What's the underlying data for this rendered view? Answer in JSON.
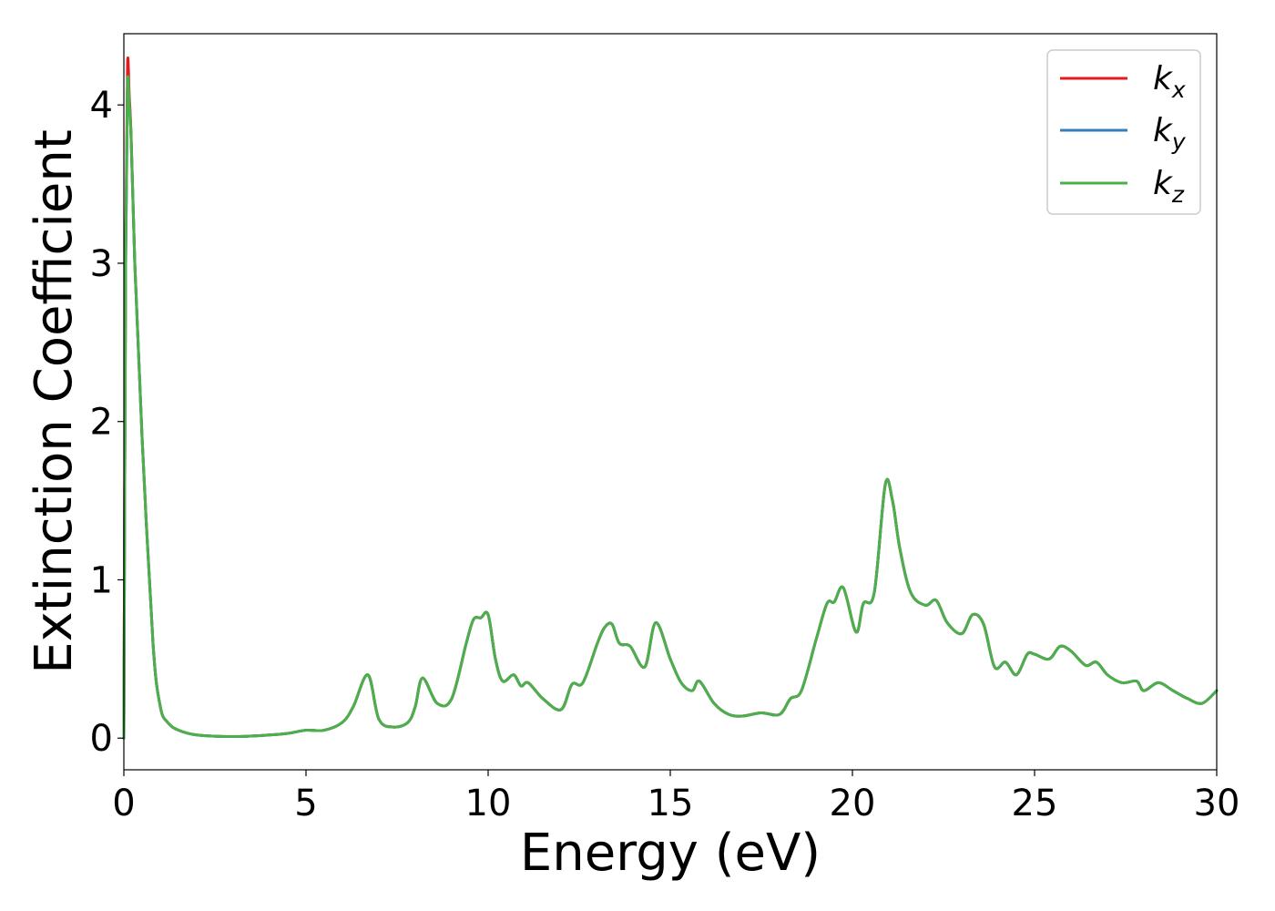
{
  "chart_data": {
    "type": "line",
    "title": "",
    "xlabel": "Energy (eV)",
    "ylabel": "Extinction Coefficient",
    "xlim": [
      0,
      30
    ],
    "ylim": [
      -0.2,
      4.45
    ],
    "xticks": [
      0,
      5,
      10,
      15,
      20,
      25,
      30
    ],
    "xtick_labels": [
      "0",
      "5",
      "10",
      "15",
      "20",
      "25",
      "30"
    ],
    "yticks": [
      0,
      1,
      2,
      3,
      4
    ],
    "ytick_labels": [
      "0",
      "1",
      "2",
      "3",
      "4"
    ],
    "grid": false,
    "legend_position": "top-right",
    "series": [
      {
        "name": "k",
        "subscript": "x",
        "color": "#e41a1c",
        "x": [
          0,
          0.05,
          0.1,
          0.15,
          0.2,
          0.3,
          0.5,
          0.8,
          1.0,
          1.2,
          1.5,
          2,
          3,
          4,
          4.5,
          5,
          5.5,
          6,
          6.3,
          6.7,
          7.0,
          7.4,
          7.8,
          8.0,
          8.2,
          8.6,
          9.0,
          9.4,
          9.6,
          9.8,
          10.0,
          10.2,
          10.4,
          10.7,
          10.9,
          11.1,
          11.5,
          12.0,
          12.3,
          12.6,
          13.0,
          13.2,
          13.4,
          13.6,
          13.9,
          14.3,
          14.6,
          15.0,
          15.3,
          15.6,
          15.8,
          16.2,
          16.6,
          17.0,
          17.5,
          18.0,
          18.3,
          18.6,
          19.0,
          19.3,
          19.5,
          19.75,
          20.1,
          20.3,
          20.6,
          20.9,
          21.1,
          21.3,
          21.6,
          22.0,
          22.3,
          22.6,
          23.0,
          23.3,
          23.6,
          23.9,
          24.2,
          24.5,
          24.8,
          25.0,
          25.4,
          25.7,
          26.0,
          26.4,
          26.7,
          27.0,
          27.4,
          27.8,
          28.0,
          28.4,
          28.8,
          29.2,
          29.6,
          30.0
        ],
        "y": [
          0.0,
          3.1,
          4.25,
          4.05,
          3.8,
          3.0,
          1.9,
          0.6,
          0.2,
          0.1,
          0.05,
          0.02,
          0.01,
          0.02,
          0.03,
          0.05,
          0.05,
          0.1,
          0.2,
          0.4,
          0.12,
          0.07,
          0.1,
          0.2,
          0.38,
          0.22,
          0.25,
          0.6,
          0.75,
          0.76,
          0.78,
          0.5,
          0.36,
          0.4,
          0.33,
          0.35,
          0.25,
          0.18,
          0.34,
          0.35,
          0.6,
          0.7,
          0.72,
          0.6,
          0.58,
          0.45,
          0.73,
          0.5,
          0.35,
          0.3,
          0.36,
          0.22,
          0.15,
          0.14,
          0.16,
          0.15,
          0.25,
          0.3,
          0.62,
          0.85,
          0.86,
          0.95,
          0.67,
          0.85,
          0.92,
          1.6,
          1.5,
          1.2,
          0.92,
          0.84,
          0.87,
          0.73,
          0.66,
          0.78,
          0.72,
          0.45,
          0.48,
          0.4,
          0.53,
          0.53,
          0.5,
          0.58,
          0.55,
          0.46,
          0.48,
          0.4,
          0.35,
          0.36,
          0.3,
          0.35,
          0.3,
          0.25,
          0.22,
          0.3
        ]
      },
      {
        "name": "k",
        "subscript": "y",
        "color": "#377eb8",
        "x": [
          0,
          0.05,
          0.1,
          0.15,
          0.2,
          0.3,
          0.5,
          0.8,
          1.0,
          1.2,
          1.5,
          2,
          3,
          4,
          4.5,
          5,
          5.5,
          6,
          6.3,
          6.7,
          7.0,
          7.4,
          7.8,
          8.0,
          8.2,
          8.6,
          9.0,
          9.4,
          9.6,
          9.8,
          10.0,
          10.2,
          10.4,
          10.7,
          10.9,
          11.1,
          11.5,
          12.0,
          12.3,
          12.6,
          13.0,
          13.2,
          13.4,
          13.6,
          13.9,
          14.3,
          14.6,
          15.0,
          15.3,
          15.6,
          15.8,
          16.2,
          16.6,
          17.0,
          17.5,
          18.0,
          18.3,
          18.6,
          19.0,
          19.3,
          19.5,
          19.75,
          20.1,
          20.3,
          20.6,
          20.9,
          21.1,
          21.3,
          21.6,
          22.0,
          22.3,
          22.6,
          23.0,
          23.3,
          23.6,
          23.9,
          24.2,
          24.5,
          24.8,
          25.0,
          25.4,
          25.7,
          26.0,
          26.4,
          26.7,
          27.0,
          27.4,
          27.8,
          28.0,
          28.4,
          28.8,
          29.2,
          29.6,
          30.0
        ],
        "y": [
          0.0,
          3.0,
          4.12,
          4.0,
          3.78,
          3.0,
          1.9,
          0.6,
          0.2,
          0.1,
          0.05,
          0.02,
          0.01,
          0.02,
          0.03,
          0.05,
          0.05,
          0.1,
          0.2,
          0.4,
          0.12,
          0.07,
          0.1,
          0.2,
          0.38,
          0.22,
          0.25,
          0.6,
          0.75,
          0.76,
          0.78,
          0.5,
          0.36,
          0.4,
          0.33,
          0.35,
          0.25,
          0.18,
          0.34,
          0.35,
          0.6,
          0.7,
          0.72,
          0.6,
          0.58,
          0.45,
          0.73,
          0.5,
          0.35,
          0.3,
          0.36,
          0.22,
          0.15,
          0.14,
          0.16,
          0.15,
          0.25,
          0.3,
          0.62,
          0.85,
          0.86,
          0.95,
          0.67,
          0.85,
          0.92,
          1.6,
          1.5,
          1.2,
          0.92,
          0.84,
          0.87,
          0.73,
          0.66,
          0.78,
          0.72,
          0.45,
          0.48,
          0.4,
          0.53,
          0.53,
          0.5,
          0.58,
          0.55,
          0.46,
          0.48,
          0.4,
          0.35,
          0.36,
          0.3,
          0.35,
          0.3,
          0.25,
          0.22,
          0.3
        ]
      },
      {
        "name": "k",
        "subscript": "z",
        "color": "#4daf4a",
        "x": [
          0,
          0.05,
          0.1,
          0.15,
          0.2,
          0.3,
          0.5,
          0.8,
          1.0,
          1.2,
          1.5,
          2,
          3,
          4,
          4.5,
          5,
          5.5,
          6,
          6.3,
          6.7,
          7.0,
          7.4,
          7.8,
          8.0,
          8.2,
          8.6,
          9.0,
          9.4,
          9.6,
          9.8,
          10.0,
          10.2,
          10.4,
          10.7,
          10.9,
          11.1,
          11.5,
          12.0,
          12.3,
          12.6,
          13.0,
          13.2,
          13.4,
          13.6,
          13.9,
          14.3,
          14.6,
          15.0,
          15.3,
          15.6,
          15.8,
          16.2,
          16.6,
          17.0,
          17.5,
          18.0,
          18.3,
          18.6,
          19.0,
          19.3,
          19.5,
          19.75,
          20.1,
          20.3,
          20.6,
          20.9,
          21.1,
          21.3,
          21.6,
          22.0,
          22.3,
          22.6,
          23.0,
          23.3,
          23.6,
          23.9,
          24.2,
          24.5,
          24.8,
          25.0,
          25.4,
          25.7,
          26.0,
          26.4,
          26.7,
          27.0,
          27.4,
          27.8,
          28.0,
          28.4,
          28.8,
          29.2,
          29.6,
          30.0
        ],
        "y": [
          0.0,
          3.0,
          4.12,
          4.0,
          3.78,
          3.0,
          1.9,
          0.6,
          0.2,
          0.1,
          0.05,
          0.02,
          0.01,
          0.02,
          0.03,
          0.05,
          0.05,
          0.1,
          0.2,
          0.4,
          0.12,
          0.07,
          0.1,
          0.2,
          0.38,
          0.22,
          0.25,
          0.6,
          0.75,
          0.76,
          0.78,
          0.5,
          0.36,
          0.4,
          0.33,
          0.35,
          0.25,
          0.18,
          0.34,
          0.35,
          0.6,
          0.7,
          0.72,
          0.6,
          0.58,
          0.45,
          0.73,
          0.5,
          0.35,
          0.3,
          0.36,
          0.22,
          0.15,
          0.14,
          0.16,
          0.15,
          0.25,
          0.3,
          0.62,
          0.85,
          0.86,
          0.95,
          0.67,
          0.85,
          0.92,
          1.6,
          1.5,
          1.2,
          0.92,
          0.84,
          0.87,
          0.73,
          0.66,
          0.78,
          0.72,
          0.45,
          0.48,
          0.4,
          0.53,
          0.53,
          0.5,
          0.58,
          0.55,
          0.46,
          0.48,
          0.4,
          0.35,
          0.36,
          0.3,
          0.35,
          0.3,
          0.25,
          0.22,
          0.3
        ]
      }
    ]
  }
}
